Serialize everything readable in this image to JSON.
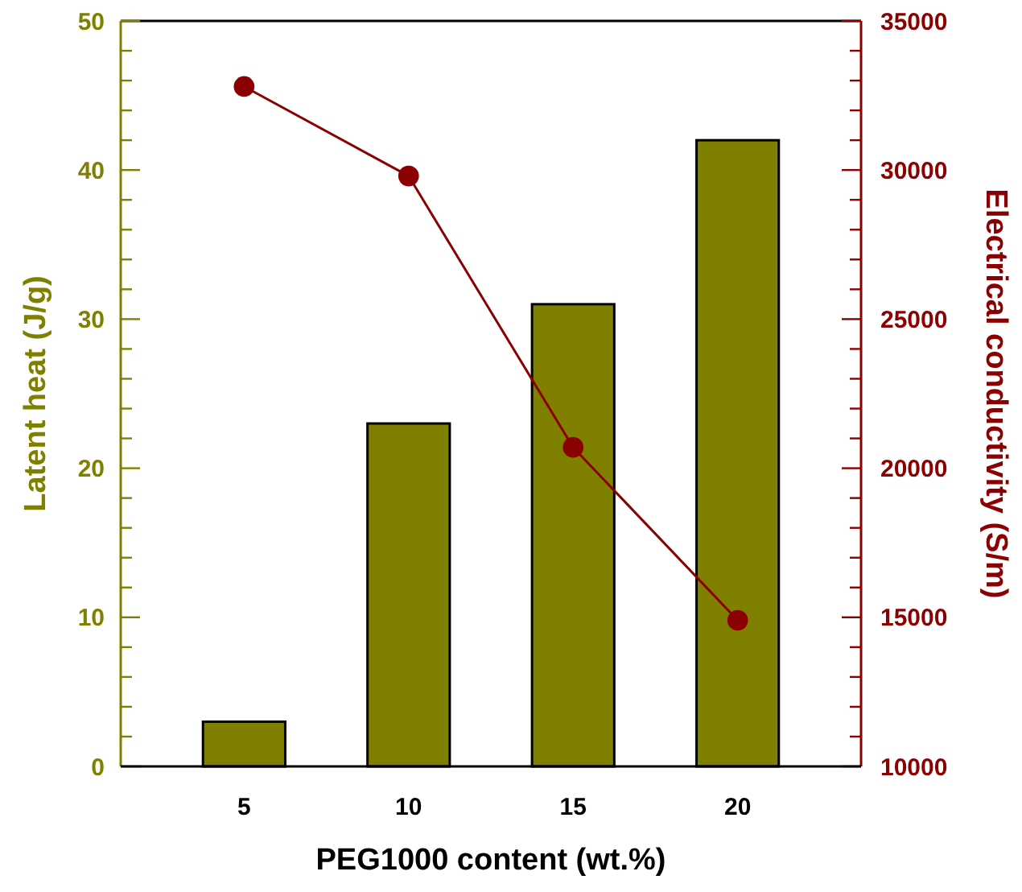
{
  "chart_data": {
    "type": "bar",
    "xlabel": "PEG1000 content (wt.%)",
    "ylabel": "Latent heat (J/g)",
    "y2label": "Electrical conductivity (S/m)",
    "categories": [
      "5",
      "10",
      "15",
      "20"
    ],
    "series": [
      {
        "color": "#808000",
        "values": [
          3,
          23,
          31,
          42
        ]
      },
      {
        "type": "line",
        "axis": "y2",
        "color": "#8b0000",
        "marker": "circle",
        "values": [
          32800,
          29800,
          20700,
          14900
        ]
      }
    ],
    "ylim": [
      0,
      50
    ],
    "yticks": [
      0,
      {
        "value": 2,
        "label": null
      },
      {
        "value": 4,
        "label": null
      },
      {
        "value": 6,
        "label": null
      },
      {
        "value": 8,
        "label": null
      },
      10,
      {
        "value": 12,
        "label": null
      },
      {
        "value": 14,
        "label": null
      },
      {
        "value": 16,
        "label": null
      },
      {
        "value": 18,
        "label": null
      },
      20,
      {
        "value": 22,
        "label": null
      },
      {
        "value": 24,
        "label": null
      },
      {
        "value": 26,
        "label": null
      },
      {
        "value": 28,
        "label": null
      },
      30,
      {
        "value": 32,
        "label": null
      },
      {
        "value": 34,
        "label": null
      },
      {
        "value": 36,
        "label": null
      },
      {
        "value": 38,
        "label": null
      },
      40,
      {
        "value": 42,
        "label": null
      },
      {
        "value": 44,
        "label": null
      },
      {
        "value": 46,
        "label": null
      },
      {
        "value": 48,
        "label": null
      },
      50
    ],
    "y2lim": [
      10000,
      35000
    ],
    "y2ticks": [
      10000,
      {
        "value": 11000,
        "label": null
      },
      {
        "value": 12000,
        "label": null
      },
      {
        "value": 13000,
        "label": null
      },
      {
        "value": 14000,
        "label": null
      },
      15000,
      {
        "value": 16000,
        "label": null
      },
      {
        "value": 17000,
        "label": null
      },
      {
        "value": 18000,
        "label": null
      },
      {
        "value": 19000,
        "label": null
      },
      20000,
      {
        "value": 21000,
        "label": null
      },
      {
        "value": 22000,
        "label": null
      },
      {
        "value": 23000,
        "label": null
      },
      {
        "value": 24000,
        "label": null
      },
      25000,
      {
        "value": 26000,
        "label": null
      },
      {
        "value": 27000,
        "label": null
      },
      {
        "value": 28000,
        "label": null
      },
      {
        "value": 29000,
        "label": null
      },
      30000,
      {
        "value": 31000,
        "label": null
      },
      {
        "value": 32000,
        "label": null
      },
      {
        "value": 33000,
        "label": null
      },
      {
        "value": 34000,
        "label": null
      },
      35000
    ],
    "grid": false
  }
}
